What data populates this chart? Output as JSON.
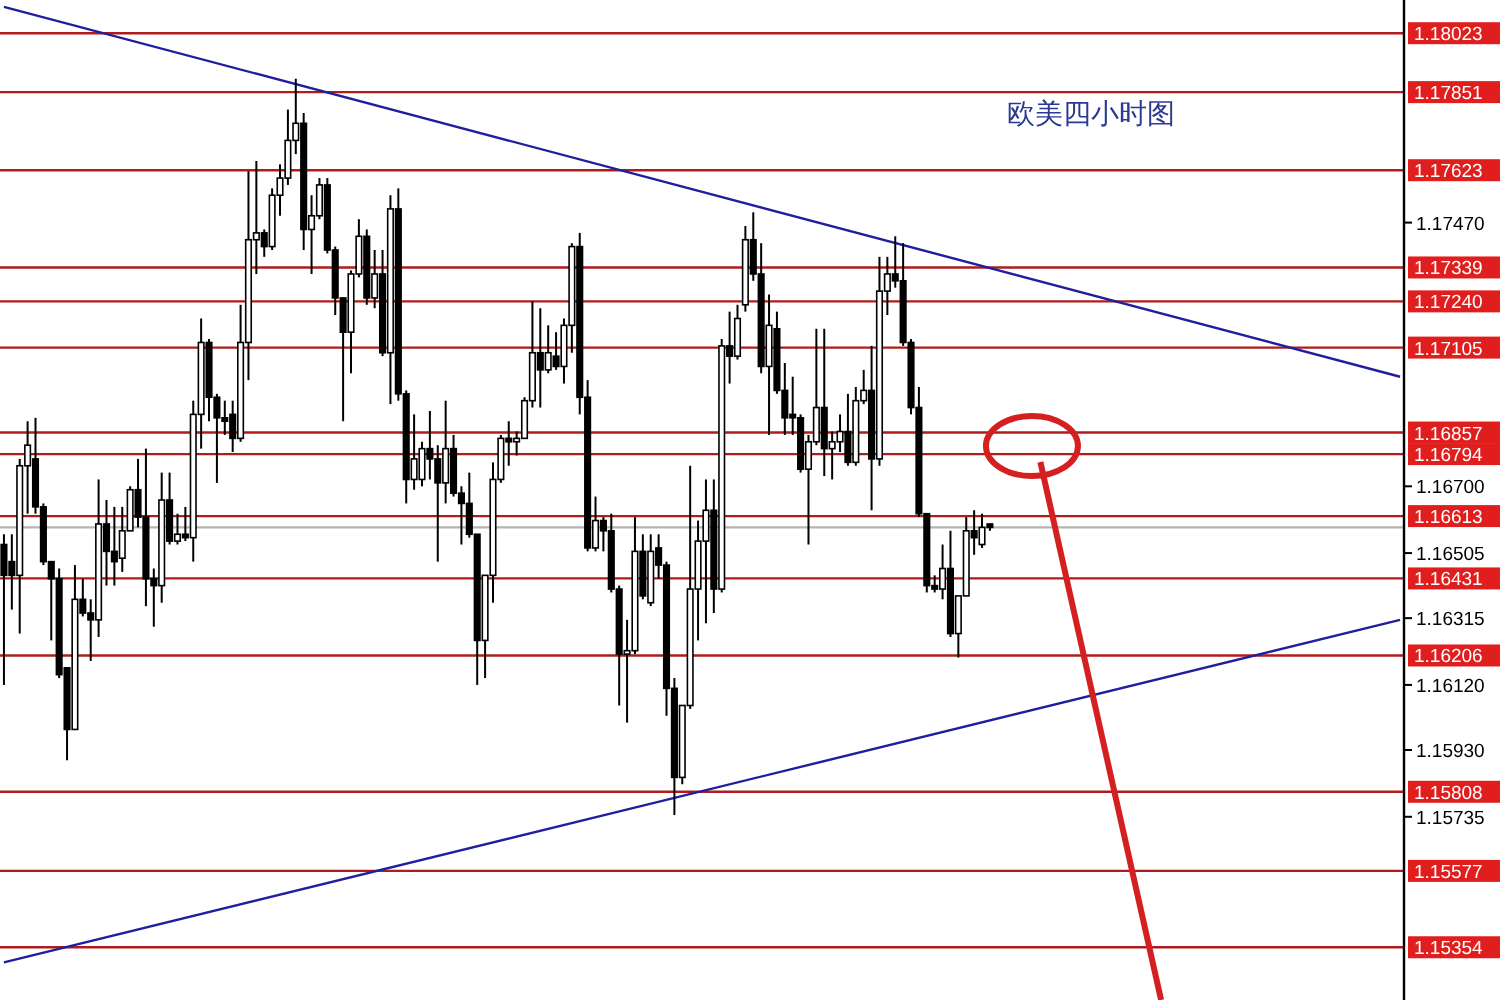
{
  "chart_data": {
    "type": "candlestick",
    "title": "欧美四小时图",
    "categories": [
      null,
      null,
      null,
      null,
      null,
      null,
      null,
      null,
      null,
      null,
      null,
      null,
      null,
      null,
      null,
      null,
      null,
      null,
      null,
      null,
      null,
      null,
      null,
      null,
      null,
      null,
      null,
      null,
      null,
      null,
      null,
      null,
      null,
      null,
      null,
      null,
      null,
      null,
      null,
      null,
      null,
      null,
      null,
      null,
      null,
      null,
      null,
      null,
      null,
      null,
      null,
      null,
      null,
      null,
      null,
      null,
      null,
      null,
      null,
      null,
      null,
      null,
      null,
      null,
      null,
      null,
      null,
      null,
      null,
      null,
      null,
      null,
      null,
      null,
      null,
      null,
      null,
      null,
      null,
      null,
      null,
      null,
      null,
      null,
      null,
      null,
      null,
      null,
      null,
      null,
      null,
      null,
      null,
      null,
      null,
      null,
      null,
      null,
      null,
      null,
      null,
      null,
      null,
      null,
      null,
      null,
      null,
      null,
      null,
      null,
      null,
      null,
      null,
      null,
      null,
      null,
      null,
      null,
      null,
      null,
      null,
      null,
      null,
      null,
      null,
      null,
      null,
      null,
      null,
      null,
      null,
      null,
      null,
      null,
      null,
      null,
      null,
      null,
      null,
      null,
      null,
      null,
      null,
      null,
      null,
      null,
      null,
      null,
      null,
      null,
      null,
      null,
      null,
      null,
      null,
      null,
      null,
      null,
      null,
      null,
      null,
      null,
      null,
      null,
      null,
      null,
      null,
      null,
      null,
      null,
      null,
      null,
      null,
      null,
      null,
      null,
      null,
      null
    ],
    "ohlc": [
      [
        1.1653,
        1.1656,
        1.1612,
        1.1644
      ],
      [
        1.1648,
        1.1656,
        1.1634,
        1.1644
      ],
      [
        1.1644,
        1.1678,
        1.1627,
        1.1676
      ],
      [
        1.1676,
        1.1689,
        1.1662,
        1.1682
      ],
      [
        1.1678,
        1.169,
        1.1662,
        1.1664
      ],
      [
        1.1664,
        1.1665,
        1.1647,
        1.1648
      ],
      [
        1.1648,
        1.1648,
        1.1625,
        1.1643
      ],
      [
        1.1643,
        1.1646,
        1.1614,
        1.1615
      ],
      [
        1.1617,
        1.1617,
        1.159,
        1.1599
      ],
      [
        1.1599,
        1.1647,
        1.1599,
        1.1637
      ],
      [
        1.1637,
        1.1643,
        1.1632,
        1.1633
      ],
      [
        1.1633,
        1.1637,
        1.1619,
        1.1631
      ],
      [
        1.1631,
        1.1672,
        1.1626,
        1.1659
      ],
      [
        1.1659,
        1.1666,
        1.1641,
        1.1651
      ],
      [
        1.1651,
        1.1664,
        1.1641,
        1.1648
      ],
      [
        1.1649,
        1.1664,
        1.1645,
        1.1657
      ],
      [
        1.1657,
        1.167,
        1.1657,
        1.1669
      ],
      [
        1.1669,
        1.1678,
        1.1658,
        1.1661
      ],
      [
        1.1661,
        1.1681,
        1.1635,
        1.1643
      ],
      [
        1.1643,
        1.1646,
        1.1629,
        1.1641
      ],
      [
        1.1641,
        1.1674,
        1.1636,
        1.1666
      ],
      [
        1.1666,
        1.1674,
        1.1653,
        1.1654
      ],
      [
        1.1654,
        1.1662,
        1.1653,
        1.1656
      ],
      [
        1.1656,
        1.1664,
        1.1654,
        1.1655
      ],
      [
        1.1655,
        1.1695,
        1.1648,
        1.1691
      ],
      [
        1.1691,
        1.1719,
        1.1681,
        1.1712
      ],
      [
        1.1712,
        1.1713,
        1.1689,
        1.1696
      ],
      [
        1.1696,
        1.1697,
        1.1671,
        1.169
      ],
      [
        1.169,
        1.1695,
        1.1685,
        1.1689
      ],
      [
        1.1691,
        1.1695,
        1.168,
        1.1684
      ],
      [
        1.1684,
        1.1723,
        1.1683,
        1.1712
      ],
      [
        1.1712,
        1.1762,
        1.1701,
        1.1742
      ],
      [
        1.1742,
        1.1765,
        1.1732,
        1.1744
      ],
      [
        1.1744,
        1.1745,
        1.1737,
        1.174
      ],
      [
        1.174,
        1.1757,
        1.1739,
        1.1755
      ],
      [
        1.1755,
        1.1764,
        1.1749,
        1.176
      ],
      [
        1.176,
        1.178,
        1.1758,
        1.1771
      ],
      [
        1.1771,
        1.1789,
        1.1767,
        1.1776
      ],
      [
        1.1776,
        1.1779,
        1.1739,
        1.1745
      ],
      [
        1.1745,
        1.1755,
        1.1732,
        1.1749
      ],
      [
        1.1749,
        1.176,
        1.1748,
        1.1758
      ],
      [
        1.1758,
        1.176,
        1.1738,
        1.1739
      ],
      [
        1.1739,
        1.174,
        1.172,
        1.1725
      ],
      [
        1.1725,
        1.1725,
        1.1689,
        1.1715
      ],
      [
        1.1715,
        1.1733,
        1.1703,
        1.1732
      ],
      [
        1.1732,
        1.1748,
        1.1731,
        1.1743
      ],
      [
        1.1743,
        1.1745,
        1.1723,
        1.1725
      ],
      [
        1.1725,
        1.1739,
        1.1722,
        1.1732
      ],
      [
        1.1732,
        1.1739,
        1.1708,
        1.1709
      ],
      [
        1.1709,
        1.1755,
        1.1694,
        1.1751
      ],
      [
        1.1751,
        1.1757,
        1.1695,
        1.1697
      ],
      [
        1.1697,
        1.1698,
        1.1665,
        1.1672
      ],
      [
        1.1672,
        1.1691,
        1.1669,
        1.1678
      ],
      [
        1.1672,
        1.1683,
        1.167,
        1.1681
      ],
      [
        1.1681,
        1.1692,
        1.1672,
        1.1678
      ],
      [
        1.1678,
        1.1682,
        1.1648,
        1.1671
      ],
      [
        1.1671,
        1.1695,
        1.1665,
        1.1681
      ],
      [
        1.1681,
        1.1685,
        1.1667,
        1.1668
      ],
      [
        1.1668,
        1.167,
        1.1653,
        1.1665
      ],
      [
        1.1665,
        1.1674,
        1.1655,
        1.1656
      ],
      [
        1.1656,
        1.1656,
        1.1612,
        1.1625
      ],
      [
        1.1625,
        1.1644,
        1.1614,
        1.1644
      ],
      [
        1.1644,
        1.1677,
        1.1636,
        1.1672
      ],
      [
        1.1672,
        1.1685,
        1.1671,
        1.1684
      ],
      [
        1.1684,
        1.1689,
        1.1676,
        1.1683
      ],
      [
        1.1683,
        1.1686,
        1.1679,
        1.1684
      ],
      [
        1.1684,
        1.1696,
        1.1684,
        1.1695
      ],
      [
        1.1695,
        1.1724,
        1.1693,
        1.1709
      ],
      [
        1.1709,
        1.1722,
        1.1693,
        1.1704
      ],
      [
        1.1704,
        1.1717,
        1.1703,
        1.1709
      ],
      [
        1.1708,
        1.1715,
        1.1704,
        1.1705
      ],
      [
        1.1705,
        1.1719,
        1.17,
        1.1717
      ],
      [
        1.1717,
        1.1741,
        1.1709,
        1.174
      ],
      [
        1.174,
        1.1744,
        1.1691,
        1.1696
      ],
      [
        1.1696,
        1.1701,
        1.1651,
        1.1652
      ],
      [
        1.1652,
        1.1667,
        1.1651,
        1.166
      ],
      [
        1.166,
        1.1661,
        1.1651,
        1.1657
      ],
      [
        1.1657,
        1.1662,
        1.1639,
        1.164
      ],
      [
        1.164,
        1.1641,
        1.1606,
        1.1621
      ],
      [
        1.1621,
        1.1631,
        1.1601,
        1.1622
      ],
      [
        1.1622,
        1.1661,
        1.1621,
        1.1651
      ],
      [
        1.1651,
        1.1656,
        1.1637,
        1.1638
      ],
      [
        1.1636,
        1.1656,
        1.1635,
        1.1651
      ],
      [
        1.1652,
        1.1656,
        1.1643,
        1.1647
      ],
      [
        1.1647,
        1.1648,
        1.1603,
        1.1611
      ],
      [
        1.1611,
        1.1614,
        1.1574,
        1.1585
      ],
      [
        1.1585,
        1.1606,
        1.1583,
        1.1606
      ],
      [
        1.1606,
        1.1676,
        1.1605,
        1.164
      ],
      [
        1.164,
        1.166,
        1.1625,
        1.1654
      ],
      [
        1.1654,
        1.1672,
        1.163,
        1.1663
      ],
      [
        1.1663,
        1.1672,
        1.1633,
        1.164
      ],
      [
        1.164,
        1.1713,
        1.1639,
        1.1711
      ],
      [
        1.1711,
        1.1721,
        1.17,
        1.1708
      ],
      [
        1.1708,
        1.1723,
        1.1707,
        1.1719
      ],
      [
        1.1723,
        1.1746,
        1.1721,
        1.1742
      ],
      [
        1.1742,
        1.175,
        1.173,
        1.1732
      ],
      [
        1.1732,
        1.1741,
        1.1703,
        1.1705
      ],
      [
        1.1705,
        1.1726,
        1.1685,
        1.1717
      ],
      [
        1.1716,
        1.1721,
        1.1697,
        1.1698
      ],
      [
        1.1698,
        1.1706,
        1.1685,
        1.169
      ],
      [
        1.1691,
        1.1702,
        1.1685,
        1.169
      ],
      [
        1.169,
        1.1691,
        1.1674,
        1.1675
      ],
      [
        1.1675,
        1.1685,
        1.1653,
        1.1683
      ],
      [
        1.1683,
        1.1716,
        1.1682,
        1.1693
      ],
      [
        1.1693,
        1.1716,
        1.1673,
        1.1681
      ],
      [
        1.1681,
        1.1686,
        1.1672,
        1.1683
      ],
      [
        1.1683,
        1.1691,
        1.168,
        1.1686
      ],
      [
        1.1686,
        1.1697,
        1.1676,
        1.1677
      ],
      [
        1.1677,
        1.1699,
        1.1676,
        1.1695
      ],
      [
        1.1695,
        1.1704,
        1.1694,
        1.1698
      ],
      [
        1.1698,
        1.1711,
        1.1663,
        1.1678
      ],
      [
        1.1678,
        1.1737,
        1.1676,
        1.1727
      ],
      [
        1.1727,
        1.1737,
        1.172,
        1.1732
      ],
      [
        1.1732,
        1.1743,
        1.1728,
        1.173
      ],
      [
        1.173,
        1.1741,
        1.1711,
        1.1712
      ],
      [
        1.1712,
        1.1713,
        1.1691,
        1.1693
      ],
      [
        1.1693,
        1.1699,
        1.1661,
        1.1662
      ],
      [
        1.1662,
        1.1662,
        1.1639,
        1.1641
      ],
      [
        1.1641,
        1.1644,
        1.1639,
        1.164
      ],
      [
        1.164,
        1.1653,
        1.1637,
        1.1646
      ],
      [
        1.1646,
        1.1657,
        1.1626,
        1.1627
      ],
      [
        1.1627,
        1.1638,
        1.162,
        1.1638
      ],
      [
        1.1638,
        1.1661,
        1.1638,
        1.1657
      ],
      [
        1.1657,
        1.1663,
        1.165,
        1.1655
      ],
      [
        1.1653,
        1.1662,
        1.1652,
        1.1658
      ],
      [
        1.1659,
        1.1659,
        1.1657,
        1.1658
      ],
      null,
      null,
      null,
      null,
      null,
      null,
      null,
      null,
      null,
      null,
      null,
      null,
      null,
      null,
      null,
      null,
      null,
      null,
      null,
      null,
      null,
      null,
      null,
      null,
      null,
      null,
      null,
      null,
      null,
      null,
      null,
      null,
      null,
      null,
      null,
      null,
      null,
      null,
      null,
      null,
      null,
      null,
      null,
      null,
      null,
      null,
      null,
      null,
      null,
      null,
      null,
      null
    ],
    "series": [
      {
        "type": "line",
        "color": "#1f1f9e",
        "values": [
          1.181,
          null,
          null,
          null,
          null,
          null,
          null,
          null,
          null,
          null,
          null,
          null,
          null,
          null,
          null,
          null,
          null,
          null,
          null,
          null,
          null,
          null,
          null,
          null,
          null,
          null,
          null,
          null,
          null,
          null,
          null,
          null,
          null,
          null,
          null,
          null,
          null,
          null,
          null,
          null,
          null,
          null,
          null,
          null,
          null,
          null,
          null,
          null,
          null,
          null,
          null,
          null,
          null,
          null,
          null,
          null,
          null,
          null,
          null,
          null,
          null,
          null,
          null,
          null,
          null,
          null,
          null,
          null,
          null,
          null,
          null,
          null,
          null,
          null,
          null,
          null,
          null,
          null,
          null,
          null,
          null,
          null,
          null,
          null,
          null,
          null,
          null,
          null,
          null,
          null,
          null,
          null,
          null,
          null,
          null,
          null,
          null,
          null,
          null,
          null,
          null,
          null,
          null,
          null,
          null,
          null,
          null,
          null,
          null,
          null,
          null,
          null,
          null,
          null,
          null,
          null,
          null,
          null,
          null,
          null,
          null,
          null,
          null,
          null,
          null,
          null,
          null,
          null,
          null,
          null,
          null,
          null,
          null,
          null,
          null,
          null,
          null,
          null,
          null,
          null,
          null,
          null,
          null,
          null,
          null,
          null,
          null,
          null,
          null,
          null,
          null,
          null,
          null,
          null,
          null,
          null,
          null,
          null,
          null,
          null,
          null,
          null,
          null,
          null,
          null,
          null,
          null,
          null,
          null,
          null,
          null,
          null,
          null,
          null,
          null,
          null,
          null,
          1.1702
        ]
      },
      {
        "type": "line",
        "color": "#1f1f9e",
        "values": [
          1.1531,
          null,
          null,
          null,
          null,
          null,
          null,
          null,
          null,
          null,
          null,
          null,
          null,
          null,
          null,
          null,
          null,
          null,
          null,
          null,
          null,
          null,
          null,
          null,
          null,
          null,
          null,
          null,
          null,
          null,
          null,
          null,
          null,
          null,
          null,
          null,
          null,
          null,
          null,
          null,
          null,
          null,
          null,
          null,
          null,
          null,
          null,
          null,
          null,
          null,
          null,
          null,
          null,
          null,
          null,
          null,
          null,
          null,
          null,
          null,
          null,
          null,
          null,
          null,
          null,
          null,
          null,
          null,
          null,
          null,
          null,
          null,
          null,
          null,
          null,
          null,
          null,
          null,
          null,
          null,
          null,
          null,
          null,
          null,
          null,
          null,
          null,
          null,
          null,
          null,
          null,
          null,
          null,
          null,
          null,
          null,
          null,
          null,
          null,
          null,
          null,
          null,
          null,
          null,
          null,
          null,
          null,
          null,
          null,
          null,
          null,
          null,
          null,
          null,
          null,
          null,
          null,
          null,
          null,
          null,
          null,
          null,
          null,
          null,
          null,
          null,
          null,
          null,
          null,
          null,
          null,
          null,
          null,
          null,
          null,
          null,
          null,
          null,
          null,
          null,
          null,
          null,
          null,
          null,
          null,
          null,
          null,
          null,
          null,
          null,
          null,
          null,
          null,
          null,
          null,
          null,
          null,
          null,
          null,
          null,
          null,
          null,
          null,
          null,
          null,
          null,
          null,
          null,
          null,
          null,
          null,
          null,
          null,
          null,
          null,
          null,
          null,
          1.1631
        ]
      }
    ],
    "ref_lines": [
      {
        "axis": "y",
        "value": 1.18023,
        "label": "1.18023",
        "color": "#b01c1c"
      },
      {
        "axis": "y",
        "value": 1.17851,
        "label": "1.17851",
        "color": "#b01c1c"
      },
      {
        "axis": "y",
        "value": 1.17623,
        "label": "1.17623",
        "color": "#b01c1c"
      },
      {
        "axis": "y",
        "value": 1.17339,
        "label": "1.17339",
        "color": "#b01c1c"
      },
      {
        "axis": "y",
        "value": 1.1724,
        "label": "1.17240",
        "color": "#b01c1c"
      },
      {
        "axis": "y",
        "value": 1.17105,
        "label": "1.17105",
        "color": "#b01c1c"
      },
      {
        "axis": "y",
        "value": 1.16857,
        "label": "1.16857",
        "color": "#b01c1c"
      },
      {
        "axis": "y",
        "value": 1.16794,
        "label": "1.16794",
        "color": "#b01c1c"
      },
      {
        "axis": "y",
        "value": 1.16613,
        "label": "1.16613",
        "color": "#b01c1c"
      },
      {
        "axis": "y",
        "value": 1.1658,
        "color": "#b4b4b4"
      },
      {
        "axis": "y",
        "value": 1.16431,
        "label": "1.16431",
        "color": "#b01c1c"
      },
      {
        "axis": "y",
        "value": 1.16206,
        "label": "1.16206",
        "color": "#b01c1c"
      },
      {
        "axis": "y",
        "value": 1.15808,
        "label": "1.15808",
        "color": "#b01c1c"
      },
      {
        "axis": "y",
        "value": 1.15577,
        "label": "1.15577",
        "color": "#b01c1c"
      },
      {
        "axis": "y",
        "value": 1.15354,
        "label": "1.15354",
        "color": "#b01c1c"
      }
    ],
    "ylim": [
      1.152,
      1.1812
    ],
    "yticks": [
      {
        "value": 1.1747,
        "label": "1.17470"
      },
      {
        "value": 1.167,
        "label": "1.16700"
      },
      {
        "value": 1.16505,
        "label": "1.16505"
      },
      {
        "value": 1.16315,
        "label": "1.16315"
      },
      {
        "value": 1.1612,
        "label": "1.16120"
      },
      {
        "value": 1.1593,
        "label": "1.15930"
      },
      {
        "value": 1.15735,
        "label": "1.15735"
      }
    ],
    "tick_labels": "y"
  }
}
